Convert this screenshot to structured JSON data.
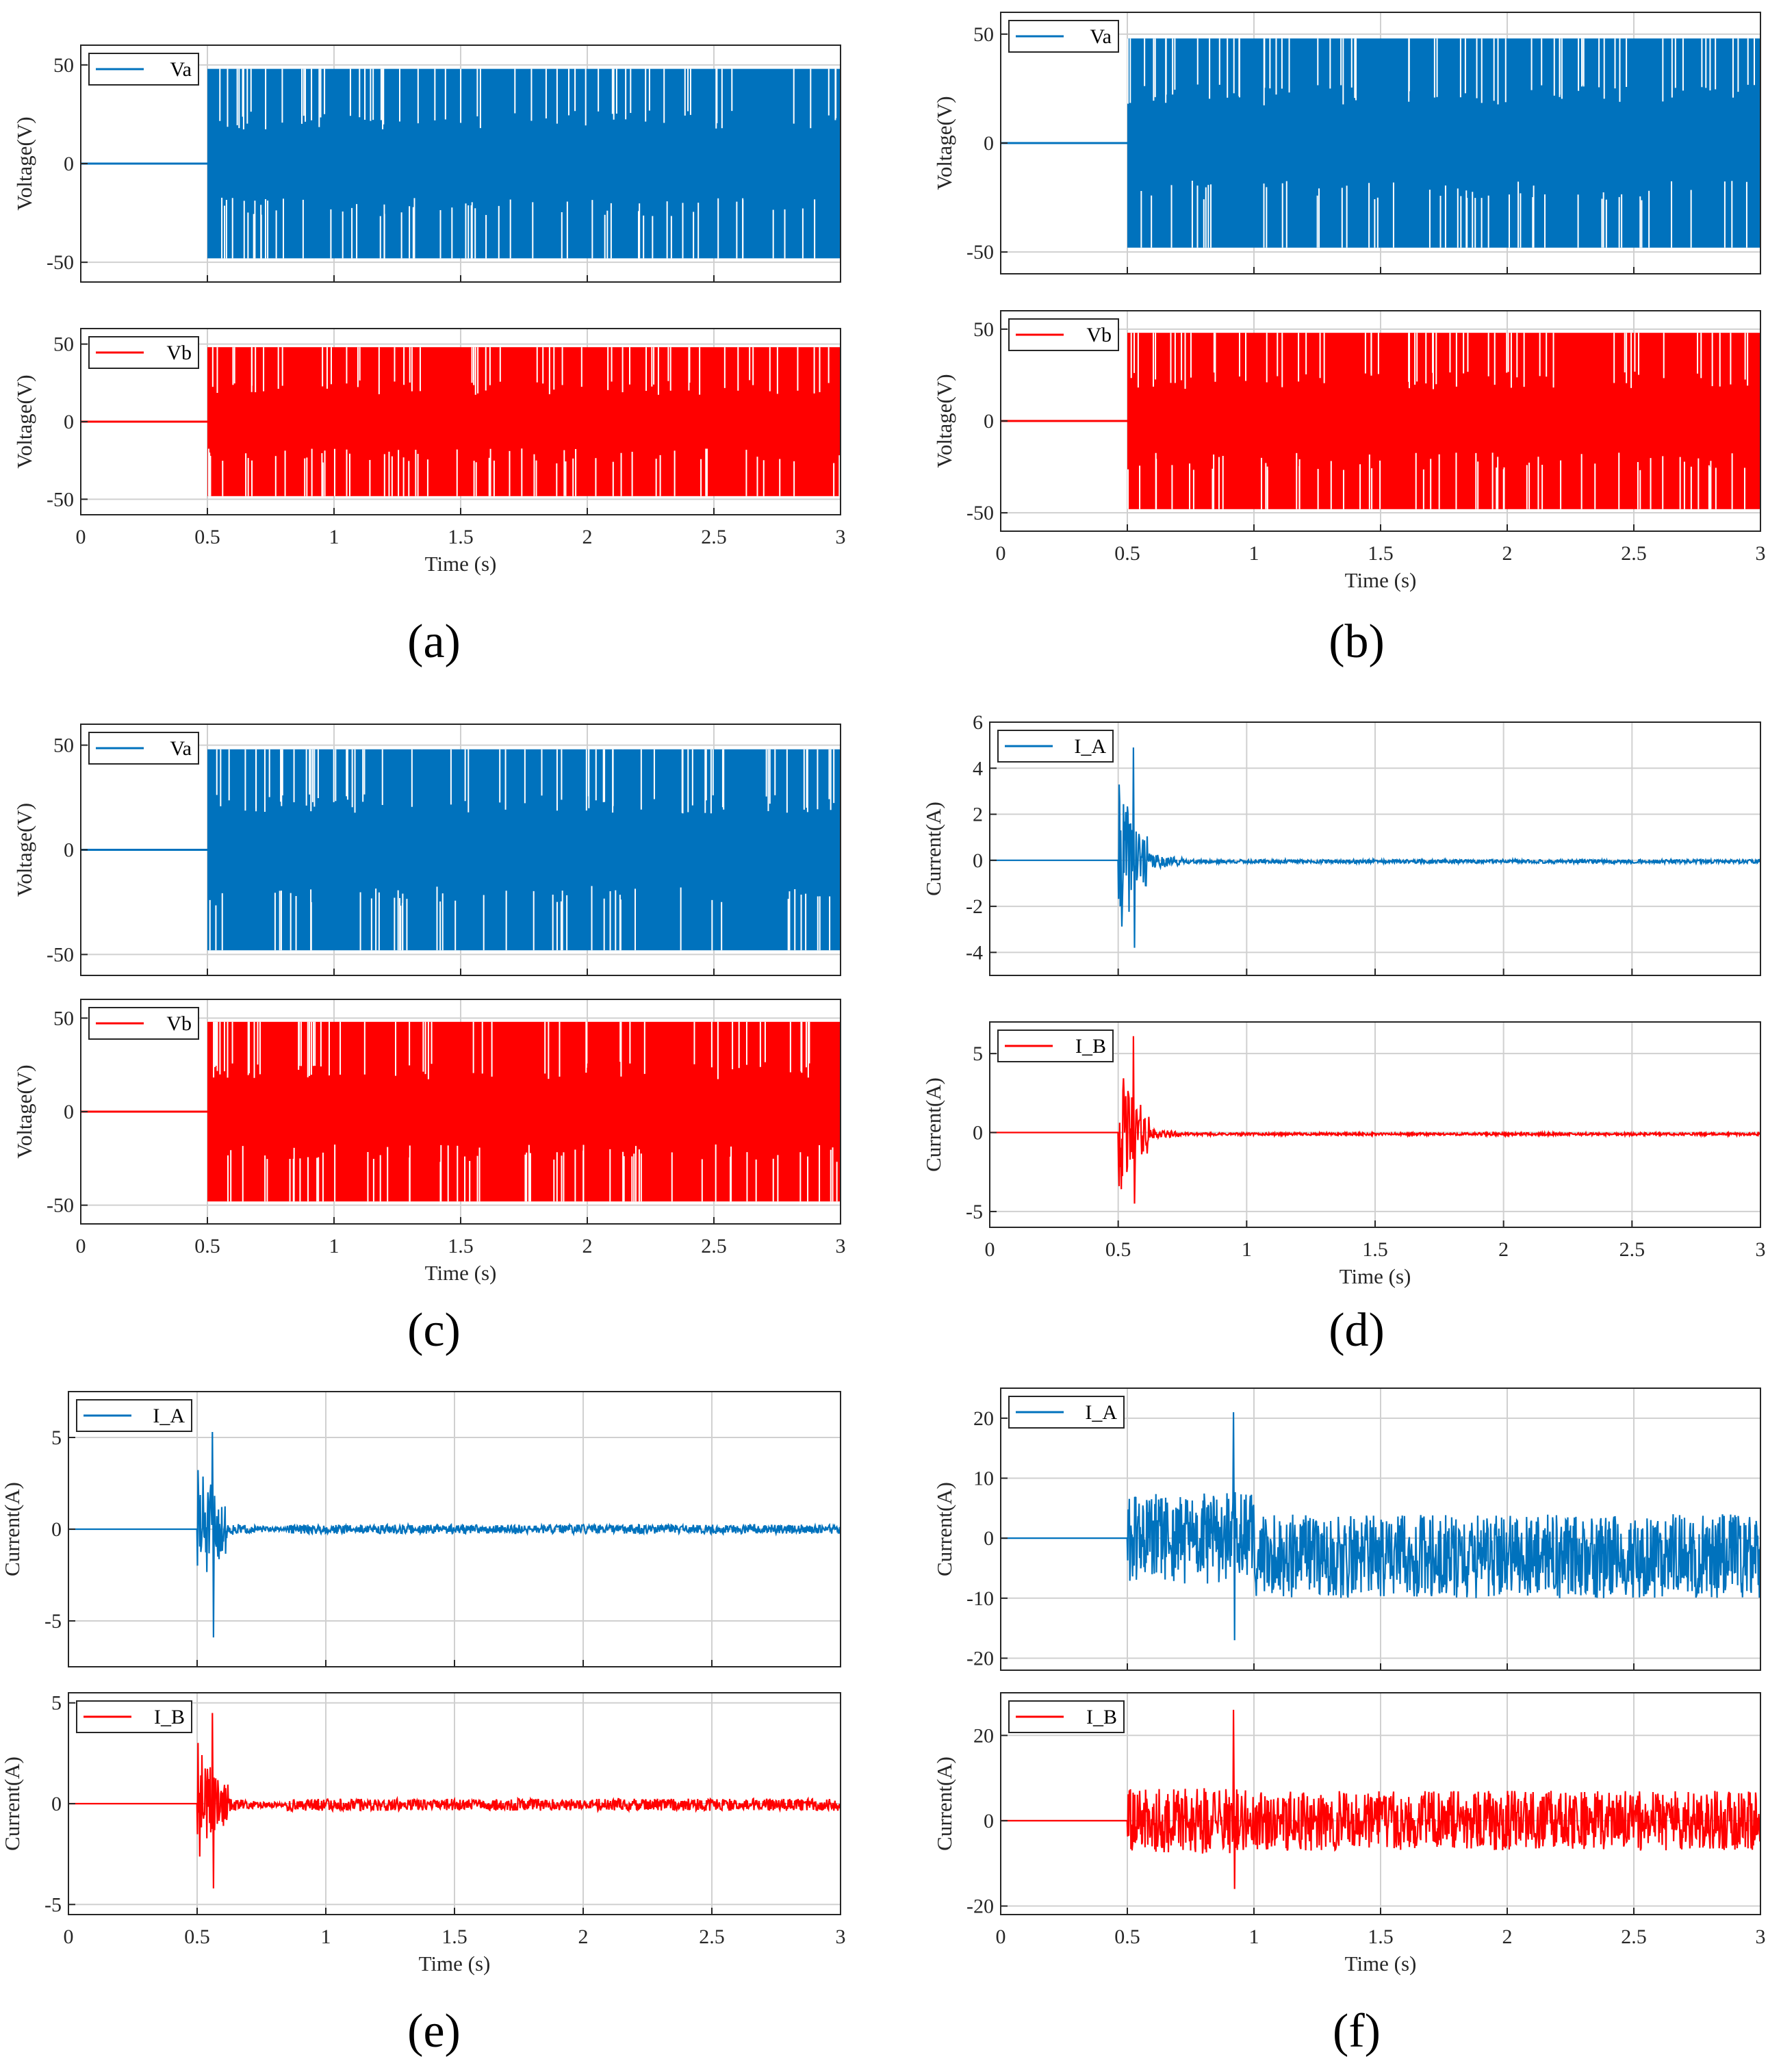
{
  "colors": {
    "blue": "#0072bd",
    "red": "#ff0000"
  },
  "panels": [
    {
      "label": "(a)",
      "xlabel": "Time (s)",
      "xticks": [
        "0",
        "0.5",
        "1",
        "1.5",
        "2",
        "2.5",
        "3"
      ],
      "subplots": [
        {
          "legend": "Va",
          "ylabel": "Voltage(V)",
          "color": "blue",
          "kind": "pwm",
          "yticks": [
            "-50",
            "0",
            "50"
          ],
          "yvals": [
            -50,
            0,
            50
          ],
          "ylim": [
            -60,
            60
          ],
          "amp": 48,
          "seed": 11
        },
        {
          "legend": "Vb",
          "ylabel": "Voltage(V)",
          "color": "red",
          "kind": "pwm",
          "yticks": [
            "-50",
            "0",
            "50"
          ],
          "yvals": [
            -50,
            0,
            50
          ],
          "ylim": [
            -60,
            60
          ],
          "amp": 48,
          "seed": 12
        }
      ]
    },
    {
      "label": "(b)",
      "xlabel": "Time (s)",
      "xticks": [
        "0",
        "0.5",
        "1",
        "1.5",
        "2",
        "2.5",
        "3"
      ],
      "subplots": [
        {
          "legend": "Va",
          "ylabel": "Voltage(V)",
          "color": "blue",
          "kind": "pwm",
          "yticks": [
            "-50",
            "0",
            "50"
          ],
          "yvals": [
            -50,
            0,
            50
          ],
          "ylim": [
            -60,
            60
          ],
          "amp": 48,
          "seed": 21
        },
        {
          "legend": "Vb",
          "ylabel": "Voltage(V)",
          "color": "red",
          "kind": "pwm",
          "yticks": [
            "-50",
            "0",
            "50"
          ],
          "yvals": [
            -50,
            0,
            50
          ],
          "ylim": [
            -60,
            60
          ],
          "amp": 48,
          "seed": 22
        }
      ]
    },
    {
      "label": "(c)",
      "xlabel": "Time (s)",
      "xticks": [
        "0",
        "0.5",
        "1",
        "1.5",
        "2",
        "2.5",
        "3"
      ],
      "subplots": [
        {
          "legend": "Va",
          "ylabel": "Voltage(V)",
          "color": "blue",
          "kind": "pwm",
          "yticks": [
            "-50",
            "0",
            "50"
          ],
          "yvals": [
            -50,
            0,
            50
          ],
          "ylim": [
            -60,
            60
          ],
          "amp": 48,
          "seed": 31
        },
        {
          "legend": "Vb",
          "ylabel": "Voltage(V)",
          "color": "red",
          "kind": "pwm",
          "yticks": [
            "-50",
            "0",
            "50"
          ],
          "yvals": [
            -50,
            0,
            50
          ],
          "ylim": [
            -60,
            60
          ],
          "amp": 48,
          "seed": 32
        }
      ]
    },
    {
      "label": "(d)",
      "xlabel": "Time (s)",
      "xticks": [
        "0",
        "0.5",
        "1",
        "1.5",
        "2",
        "2.5",
        "3"
      ],
      "subplots": [
        {
          "legend": "I_A",
          "ylabel": "Current(A)",
          "color": "blue",
          "kind": "current",
          "yticks": [
            "-4",
            "-2",
            "0",
            "2",
            "4",
            "6"
          ],
          "yvals": [
            -4,
            -2,
            0,
            2,
            4,
            6
          ],
          "ylim": [
            -5,
            6
          ],
          "noise": 0.08,
          "offset": -0.05,
          "spike_max": 4.9,
          "spike_min": -3.8,
          "settle": 0.75,
          "seed": 41
        },
        {
          "legend": "I_B",
          "ylabel": "Current(A)",
          "color": "red",
          "kind": "current",
          "yticks": [
            "-5",
            "0",
            "5"
          ],
          "yvals": [
            -5,
            0,
            5
          ],
          "ylim": [
            -6,
            7
          ],
          "noise": 0.08,
          "offset": -0.1,
          "spike_max": 6.1,
          "spike_min": -4.5,
          "settle": 0.75,
          "seed": 42
        }
      ]
    },
    {
      "label": "(e)",
      "xlabel": "Time (s)",
      "xticks": [
        "0",
        "0.5",
        "1",
        "1.5",
        "2",
        "2.5",
        "3"
      ],
      "subplots": [
        {
          "legend": "I_A",
          "ylabel": "Current(A)",
          "color": "blue",
          "kind": "current",
          "yticks": [
            "-5",
            "0",
            "5"
          ],
          "yvals": [
            -5,
            0,
            5
          ],
          "ylim": [
            -7.5,
            7.5
          ],
          "noise": 0.25,
          "offset": 0.0,
          "spike_max": 5.3,
          "spike_min": -5.9,
          "settle": 0.85,
          "seed": 51
        },
        {
          "legend": "I_B",
          "ylabel": "Current(A)",
          "color": "red",
          "kind": "current",
          "yticks": [
            "-5",
            "0",
            "5"
          ],
          "yvals": [
            -5,
            0,
            5
          ],
          "ylim": [
            -5.5,
            5.5
          ],
          "noise": 0.3,
          "offset": -0.05,
          "spike_max": 4.5,
          "spike_min": -4.2,
          "settle": 0.85,
          "seed": 52
        }
      ]
    },
    {
      "label": "(f)",
      "xlabel": "Time (s)",
      "xticks": [
        "0",
        "0.5",
        "1",
        "1.5",
        "2",
        "2.5",
        "3"
      ],
      "subplots": [
        {
          "legend": "I_A",
          "ylabel": "Current(A)",
          "color": "blue",
          "kind": "current_big",
          "yticks": [
            "-20",
            "-10",
            "0",
            "10",
            "20"
          ],
          "yvals": [
            -20,
            -10,
            0,
            10,
            20
          ],
          "ylim": [
            -22,
            25
          ],
          "noise": 7,
          "offset": -3,
          "spike_max": 21,
          "spike_min": -17,
          "settle": 1.0,
          "seed": 61
        },
        {
          "legend": "I_B",
          "ylabel": "Current(A)",
          "color": "red",
          "kind": "current_big",
          "yticks": [
            "-20",
            "0",
            "20"
          ],
          "yvals": [
            -20,
            0,
            20
          ],
          "ylim": [
            -22,
            30
          ],
          "noise": 7,
          "offset": 0,
          "spike_max": 26,
          "spike_min": -16,
          "settle": 1.0,
          "seed": 62
        }
      ]
    }
  ],
  "chart_data": [
    {
      "type": "line",
      "title": "(a)",
      "xlabel": "Time (s)",
      "xlim": [
        0,
        3
      ],
      "series": [
        {
          "name": "Va",
          "ylabel": "Voltage(V)",
          "ylim": [
            -60,
            60
          ],
          "description_values": {
            "before_0.5s": 0,
            "after_0.5s_levels": [
              -48,
              -24,
              0,
              24,
              48
            ]
          }
        },
        {
          "name": "Vb",
          "ylabel": "Voltage(V)",
          "ylim": [
            -60,
            60
          ],
          "description_values": {
            "before_0.5s": 0,
            "after_0.5s_levels": [
              -48,
              -24,
              0,
              24,
              48
            ]
          }
        }
      ]
    },
    {
      "type": "line",
      "title": "(b)",
      "xlabel": "Time (s)",
      "xlim": [
        0,
        3
      ],
      "series": [
        {
          "name": "Va",
          "ylabel": "Voltage(V)",
          "ylim": [
            -60,
            60
          ]
        },
        {
          "name": "Vb",
          "ylabel": "Voltage(V)",
          "ylim": [
            -60,
            60
          ]
        }
      ]
    },
    {
      "type": "line",
      "title": "(c)",
      "xlabel": "Time (s)",
      "xlim": [
        0,
        3
      ],
      "series": [
        {
          "name": "Va",
          "ylabel": "Voltage(V)",
          "ylim": [
            -60,
            60
          ]
        },
        {
          "name": "Vb",
          "ylabel": "Voltage(V)",
          "ylim": [
            -60,
            60
          ]
        }
      ]
    },
    {
      "type": "line",
      "title": "(d)",
      "xlabel": "Time (s)",
      "xlim": [
        0,
        3
      ],
      "series": [
        {
          "name": "I_A",
          "ylabel": "Current(A)",
          "ylim": [
            -5,
            6
          ],
          "peak": 4.9,
          "trough": -3.8,
          "steady": 0
        },
        {
          "name": "I_B",
          "ylabel": "Current(A)",
          "ylim": [
            -6,
            7
          ],
          "peak": 6.1,
          "trough": -4.5,
          "steady": 0
        }
      ]
    },
    {
      "type": "line",
      "title": "(e)",
      "xlabel": "Time (s)",
      "xlim": [
        0,
        3
      ],
      "series": [
        {
          "name": "I_A",
          "ylabel": "Current(A)",
          "ylim": [
            -7.5,
            7.5
          ],
          "peak": 5.3,
          "trough": -5.9,
          "steady": 0
        },
        {
          "name": "I_B",
          "ylabel": "Current(A)",
          "ylim": [
            -5.5,
            5.5
          ],
          "peak": 4.5,
          "trough": -4.2,
          "steady": 0
        }
      ]
    },
    {
      "type": "line",
      "title": "(f)",
      "xlabel": "Time (s)",
      "xlim": [
        0,
        3
      ],
      "series": [
        {
          "name": "I_A",
          "ylabel": "Current(A)",
          "ylim": [
            -22,
            25
          ],
          "peak": 21,
          "trough": -17
        },
        {
          "name": "I_B",
          "ylabel": "Current(A)",
          "ylim": [
            -22,
            30
          ],
          "peak": 26,
          "trough": -16
        }
      ]
    }
  ]
}
